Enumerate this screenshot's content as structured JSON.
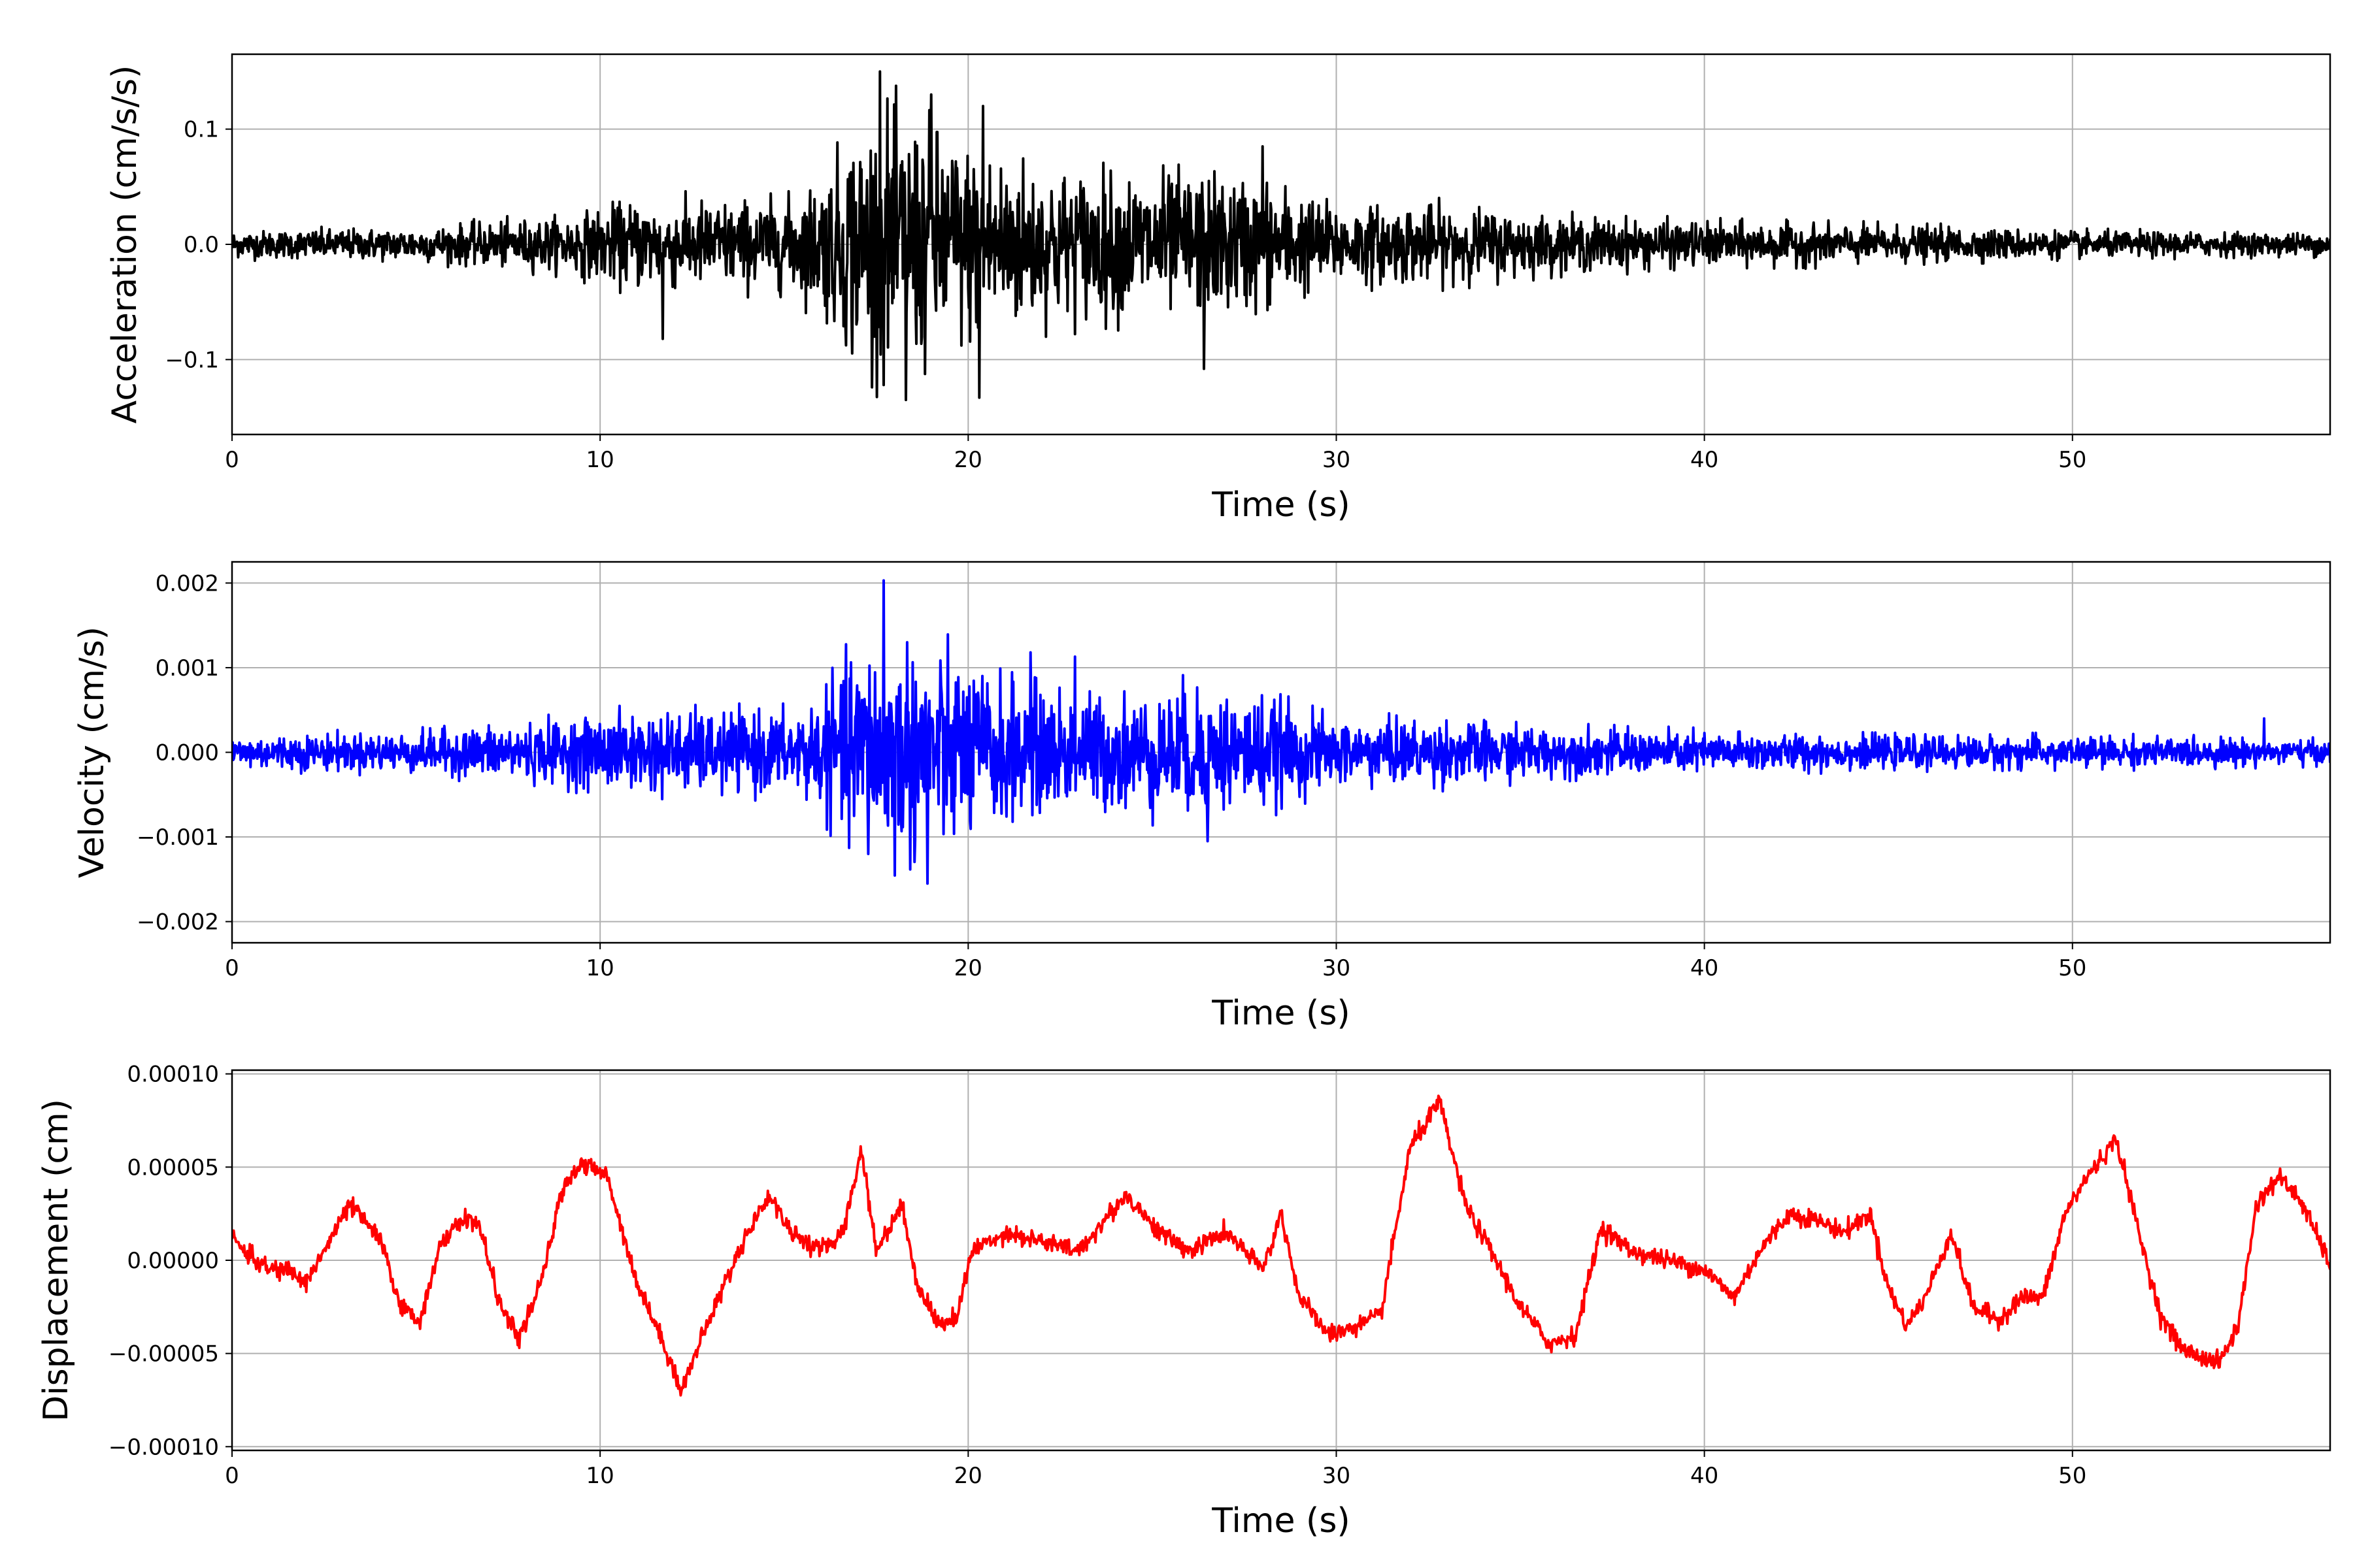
{
  "figure": {
    "background": "#ffffff"
  },
  "chart_data": [
    {
      "type": "line",
      "title": "",
      "xlabel": "Time (s)",
      "ylabel": "Acceleration (cm/s/s)",
      "xlim": [
        0,
        57
      ],
      "ylim": [
        -0.165,
        0.165
      ],
      "xticks": [
        0,
        10,
        20,
        30,
        40,
        50
      ],
      "xtick_labels": [
        "0",
        "10",
        "20",
        "30",
        "40",
        "50"
      ],
      "yticks": [
        -0.1,
        0.0,
        0.1
      ],
      "ytick_labels": [
        "−0.1",
        "0.0",
        "0.1"
      ],
      "grid": true,
      "color": "#000000",
      "envelope": {
        "t": [
          0,
          5,
          9,
          11,
          13,
          15,
          16,
          17,
          18,
          19,
          20,
          21,
          22,
          24,
          26,
          28,
          30,
          33,
          36,
          40,
          45,
          50,
          57
        ],
        "amp": [
          0.012,
          0.015,
          0.025,
          0.04,
          0.04,
          0.04,
          0.06,
          0.11,
          0.12,
          0.11,
          0.09,
          0.085,
          0.07,
          0.065,
          0.065,
          0.06,
          0.035,
          0.035,
          0.025,
          0.02,
          0.017,
          0.012,
          0.01
        ]
      },
      "peaks": [
        {
          "t": 17.6,
          "y": 0.15
        },
        {
          "t": 18.3,
          "y": -0.135
        },
        {
          "t": 20.3,
          "y": -0.133
        },
        {
          "t": 26.4,
          "y": -0.108
        },
        {
          "t": 11.7,
          "y": -0.082
        },
        {
          "t": 19.0,
          "y": 0.13
        },
        {
          "t": 20.4,
          "y": 0.12
        },
        {
          "t": 28.0,
          "y": 0.085
        }
      ]
    },
    {
      "type": "line",
      "title": "",
      "xlabel": "Time (s)",
      "ylabel": "Velocity (cm/s)",
      "xlim": [
        0,
        57
      ],
      "ylim": [
        -0.00225,
        0.00225
      ],
      "xticks": [
        0,
        10,
        20,
        30,
        40,
        50
      ],
      "xtick_labels": [
        "0",
        "10",
        "20",
        "30",
        "40",
        "50"
      ],
      "yticks": [
        -0.002,
        -0.001,
        0.0,
        0.001,
        0.002
      ],
      "ytick_labels": [
        "−0.002",
        "−0.001",
        "0.000",
        "0.001",
        "0.002"
      ],
      "grid": true,
      "color": "#0000ff",
      "envelope": {
        "t": [
          0,
          5,
          9,
          11,
          13,
          15,
          16,
          17,
          18,
          19,
          20,
          21,
          22,
          24,
          26,
          28,
          30,
          33,
          36,
          40,
          45,
          50,
          57
        ],
        "amp": [
          0.0002,
          0.00025,
          0.0004,
          0.0005,
          0.0005,
          0.0005,
          0.0007,
          0.0013,
          0.0014,
          0.0013,
          0.0011,
          0.0009,
          0.0008,
          0.0007,
          0.0008,
          0.0007,
          0.0004,
          0.0004,
          0.0003,
          0.00025,
          0.0002,
          0.0002,
          0.00015
        ]
      },
      "peaks": [
        {
          "t": 17.7,
          "y": 0.00203
        },
        {
          "t": 18.9,
          "y": -0.00155
        },
        {
          "t": 26.5,
          "y": 0.0011
        },
        {
          "t": 26.5,
          "y": -0.00105
        },
        {
          "t": 22.9,
          "y": 0.00113
        },
        {
          "t": 21.7,
          "y": 0.00118
        },
        {
          "t": 55.2,
          "y": 0.0004
        }
      ]
    },
    {
      "type": "line",
      "title": "",
      "xlabel": "Time (s)",
      "ylabel": "Displacement (cm)",
      "xlim": [
        0,
        57
      ],
      "ylim": [
        -0.000102,
        0.000102
      ],
      "xticks": [
        0,
        10,
        20,
        30,
        40,
        50
      ],
      "xtick_labels": [
        "0",
        "10",
        "20",
        "30",
        "40",
        "50"
      ],
      "yticks": [
        -0.0001,
        -5e-05,
        0.0,
        5e-05,
        0.0001
      ],
      "ytick_labels": [
        "−0.00010",
        "−0.00005",
        "0.00000",
        "0.00005",
        "0.00010"
      ],
      "grid": true,
      "color": "#ff0000",
      "x": [
        0,
        0.5,
        1.0,
        1.5,
        2.0,
        2.5,
        3.2,
        4.0,
        4.6,
        5.1,
        5.6,
        6.2,
        6.7,
        7.3,
        7.8,
        8.4,
        9.0,
        9.5,
        10.2,
        11.0,
        11.8,
        12.2,
        13.0,
        14.0,
        14.6,
        15.2,
        16.0,
        16.6,
        17.1,
        17.5,
        18.2,
        18.6,
        19.2,
        19.7,
        20.1,
        21.0,
        22.0,
        23.0,
        24.3,
        25.2,
        26.0,
        27.0,
        28.0,
        28.5,
        29.0,
        29.8,
        30.6,
        31.2,
        32.0,
        32.8,
        33.5,
        34.2,
        35.0,
        35.8,
        36.5,
        37.2,
        38.0,
        39.0,
        40.0,
        40.8,
        41.5,
        42.3,
        43.0,
        43.8,
        44.5,
        45.0,
        45.5,
        46.0,
        46.7,
        47.3,
        48.0,
        48.6,
        49.2,
        49.8,
        50.4,
        51.2,
        51.8,
        52.4,
        53.0,
        53.5,
        54.0,
        54.5,
        55.0,
        55.6,
        56.2,
        57.0
      ],
      "y": [
        1.2e-05,
        2e-06,
        -5e-06,
        -5e-06,
        -1.2e-05,
        5e-06,
        3e-05,
        1.2e-05,
        -2.5e-05,
        -3.3e-05,
        5e-06,
        2.2e-05,
        2e-05,
        -2.5e-05,
        -4.2e-05,
        -1.2e-05,
        4e-05,
        5.2e-05,
        4.5e-05,
        -1.2e-05,
        -4.8e-05,
        -7e-05,
        -3e-05,
        1.5e-05,
        3.5e-05,
        1.5e-05,
        5e-06,
        1.5e-05,
        6e-05,
        5e-06,
        3e-05,
        -1.2e-05,
        -3.5e-05,
        -3e-05,
        5e-06,
        1.5e-05,
        1e-05,
        5e-06,
        3.5e-05,
        1.5e-05,
        5e-06,
        1.5e-05,
        -5e-06,
        2.5e-05,
        -2e-05,
        -4e-05,
        -3.5e-05,
        -3e-05,
        6e-05,
        8.5e-05,
        3e-05,
        5e-06,
        -2.5e-05,
        -4.5e-05,
        -4e-05,
        1.8e-05,
        5e-06,
        0.0,
        -5e-06,
        -2e-05,
        5e-06,
        2.5e-05,
        2.2e-05,
        1.5e-05,
        2.5e-05,
        -1.5e-05,
        -3.5e-05,
        -2e-05,
        1.5e-05,
        -2.5e-05,
        -3.2e-05,
        -2e-05,
        -2e-05,
        2.5e-05,
        4.5e-05,
        6.5e-05,
        1.5e-05,
        -3e-05,
        -4.8e-05,
        -5.2e-05,
        -5.5e-05,
        -3.5e-05,
        3e-05,
        4.5e-05,
        3.2e-05,
        -2e-06
      ]
    }
  ]
}
